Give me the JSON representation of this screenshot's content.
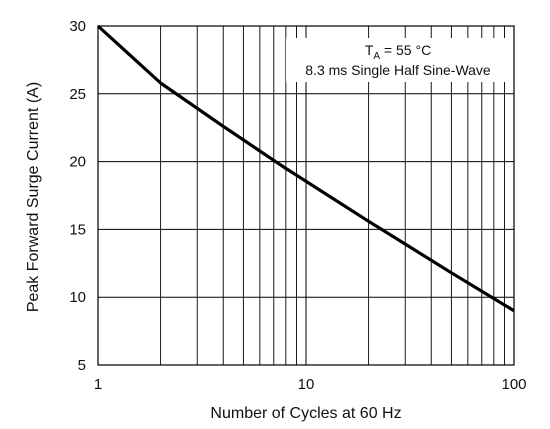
{
  "chart_data": {
    "type": "line",
    "title": "",
    "xlabel": "Number of Cycles at 60 Hz",
    "ylabel": "Peak Forward Surge Current (A)",
    "xscale": "log",
    "xlim": [
      1,
      100
    ],
    "ylim": [
      5,
      30
    ],
    "x_ticks": [
      1,
      10,
      100
    ],
    "x_tick_labels": [
      "1",
      "10",
      "100"
    ],
    "y_ticks": [
      5,
      10,
      15,
      20,
      25,
      30
    ],
    "y_tick_labels": [
      "5",
      "10",
      "15",
      "20",
      "25",
      "30"
    ],
    "grid": true,
    "annotations": {
      "ta_prefix": "T",
      "ta_subscript": "A",
      "ta_suffix": " = 55 °C",
      "waveform": "8.3 ms Single Half Sine-Wave"
    },
    "annotation_placement": "top-right",
    "series": [
      {
        "x": [
          1,
          2,
          4,
          8,
          20,
          50,
          100
        ],
        "y": [
          30,
          25.8,
          22.6,
          19.5,
          15.6,
          11.8,
          9.0
        ]
      }
    ],
    "colors": {
      "line": "#000000",
      "grid": "#000000",
      "text": "#111111"
    }
  }
}
